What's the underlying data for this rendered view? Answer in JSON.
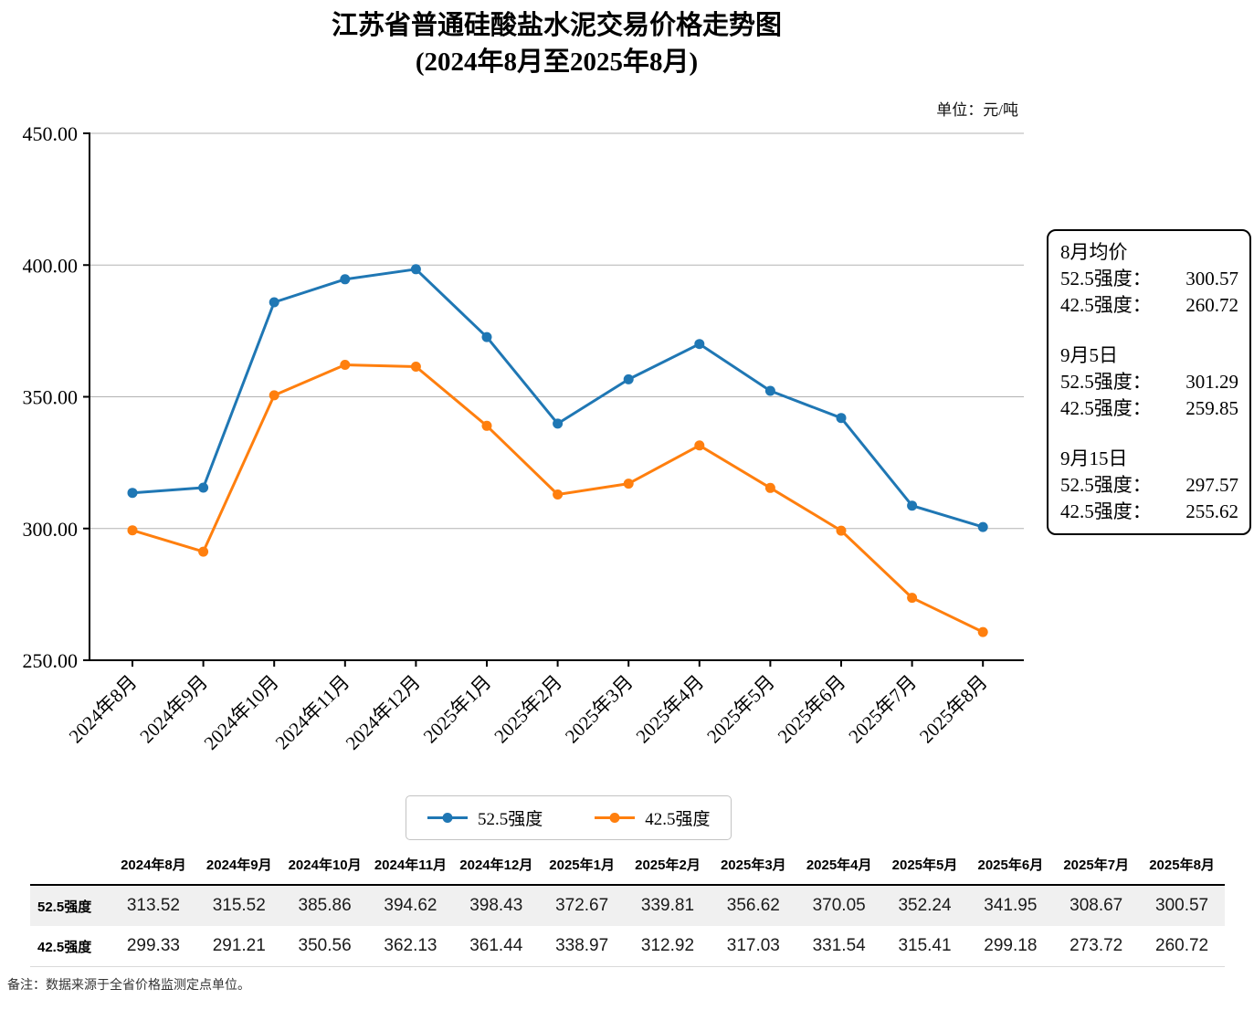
{
  "title": "江苏省普通硅酸盐水泥交易价格走势图",
  "subtitle": "(2024年8月至2025年8月)",
  "unit_label": "单位：元/吨",
  "chart_data": {
    "type": "line",
    "title": "江苏省普通硅酸盐水泥交易价格走势图",
    "subtitle": "(2024年8月至2025年8月)",
    "unit": "元/吨",
    "categories": [
      "2024年8月",
      "2024年9月",
      "2024年10月",
      "2024年11月",
      "2024年12月",
      "2025年1月",
      "2025年2月",
      "2025年3月",
      "2025年4月",
      "2025年5月",
      "2025年6月",
      "2025年7月",
      "2025年8月"
    ],
    "series": [
      {
        "name": "52.5强度",
        "color": "#1f77b4",
        "values": [
          313.52,
          315.52,
          385.86,
          394.62,
          398.43,
          372.67,
          339.81,
          356.62,
          370.05,
          352.24,
          341.95,
          308.67,
          300.57
        ]
      },
      {
        "name": "42.5强度",
        "color": "#ff7f0e",
        "values": [
          299.33,
          291.21,
          350.56,
          362.13,
          361.44,
          338.97,
          312.92,
          317.03,
          331.54,
          315.41,
          299.18,
          273.72,
          260.72
        ]
      }
    ],
    "ylim": [
      250,
      450
    ],
    "yticks": [
      250,
      300,
      350,
      400,
      450
    ],
    "ytick_labels": [
      "250.00",
      "300.00",
      "350.00",
      "400.00",
      "450.00"
    ],
    "grid": true,
    "grid_color": "#b3b3b3",
    "axis_color": "#000000",
    "legend_position": "bottom",
    "x_label_rotation": -45
  },
  "annotation": {
    "groups": [
      {
        "heading": "8月均价",
        "rows": [
          {
            "label": "52.5强度：",
            "value": "300.57"
          },
          {
            "label": "42.5强度：",
            "value": "260.72"
          }
        ]
      },
      {
        "heading": "9月5日",
        "rows": [
          {
            "label": "52.5强度：",
            "value": "301.29"
          },
          {
            "label": "42.5强度：",
            "value": "259.85"
          }
        ]
      },
      {
        "heading": "9月15日",
        "rows": [
          {
            "label": "52.5强度：",
            "value": "297.57"
          },
          {
            "label": "42.5强度：",
            "value": "255.62"
          }
        ]
      }
    ]
  },
  "legend": {
    "items": [
      {
        "label": "52.5强度",
        "color": "#1f77b4"
      },
      {
        "label": "42.5强度",
        "color": "#ff7f0e"
      }
    ]
  },
  "table": {
    "corner_label": "",
    "col_headers": [
      "2024年8月",
      "2024年9月",
      "2024年10月",
      "2024年11月",
      "2024年12月",
      "2025年1月",
      "2025年2月",
      "2025年3月",
      "2025年4月",
      "2025年5月",
      "2025年6月",
      "2025年7月",
      "2025年8月"
    ],
    "rows": [
      {
        "label": "52.5强度",
        "values": [
          "313.52",
          "315.52",
          "385.86",
          "394.62",
          "398.43",
          "372.67",
          "339.81",
          "356.62",
          "370.05",
          "352.24",
          "341.95",
          "308.67",
          "300.57"
        ]
      },
      {
        "label": "42.5强度",
        "values": [
          "299.33",
          "291.21",
          "350.56",
          "362.13",
          "361.44",
          "338.97",
          "312.92",
          "317.03",
          "331.54",
          "315.41",
          "299.18",
          "273.72",
          "260.72"
        ]
      }
    ]
  },
  "footnote": "备注：数据来源于全省价格监测定点单位。"
}
